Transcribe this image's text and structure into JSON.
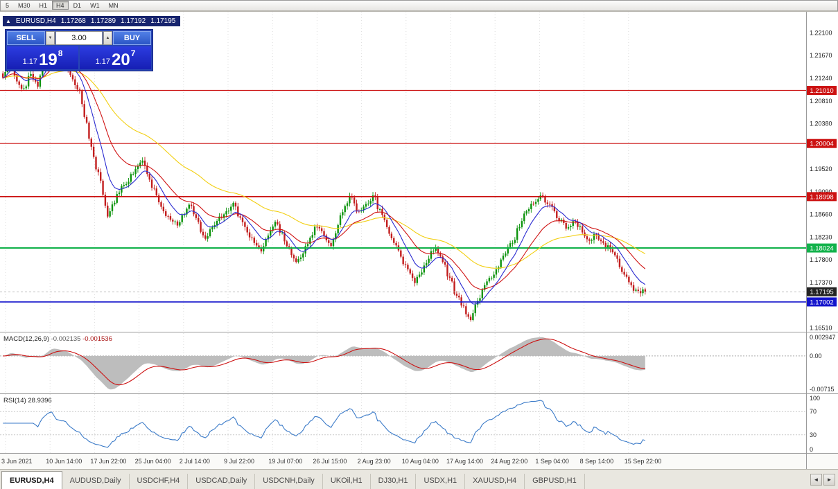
{
  "toolbar": {
    "periods": [
      {
        "label": "5",
        "active": false
      },
      {
        "label": "M30",
        "active": false
      },
      {
        "label": "H1",
        "active": false
      },
      {
        "label": "H4",
        "active": true
      },
      {
        "label": "D1",
        "active": false
      },
      {
        "label": "W1",
        "active": false
      },
      {
        "label": "MN",
        "active": false
      }
    ]
  },
  "chart": {
    "title": {
      "icon": "▲",
      "symbol": "EURUSD,H4",
      "open": "1.17268",
      "high": "1.17289",
      "low": "1.17192",
      "close": "1.17195"
    },
    "trade_panel": {
      "sell_label": "SELL",
      "buy_label": "BUY",
      "volume": "3.00",
      "down_glyph": "▼",
      "up_glyph": "▲",
      "sell_price": {
        "prefix": "1.17",
        "big": "19",
        "sup": "8"
      },
      "buy_price": {
        "prefix": "1.17",
        "big": "20",
        "sup": "7"
      }
    }
  },
  "chart_data": {
    "type": "candlestick",
    "symbol": "EURUSD",
    "timeframe": "H4",
    "ohlc_readout": {
      "open": 1.17268,
      "high": 1.17289,
      "low": 1.17192,
      "close": 1.17195
    },
    "price_axis": {
      "top": 1.225,
      "bottom": 1.1645,
      "labels": [
        "1.22100",
        "1.21670",
        "1.21240",
        "1.20810",
        "1.20380",
        "1.19950",
        "1.19520",
        "1.19090",
        "1.18660",
        "1.18230",
        "1.17800",
        "1.17370",
        "1.16940",
        "1.16510"
      ]
    },
    "time_labels": [
      "3 Jun 2021",
      "10 Jun 14:00",
      "17 Jun 22:00",
      "25 Jun 04:00",
      "2 Jul 14:00",
      "9 Jul 22:00",
      "19 Jul 07:00",
      "26 Jul 15:00",
      "2 Aug 23:00",
      "10 Aug 04:00",
      "17 Aug 14:00",
      "24 Aug 22:00",
      "1 Sep 04:00",
      "8 Sep 14:00",
      "15 Sep 22:00"
    ],
    "hlines": [
      {
        "price": 1.2101,
        "label": "1.21010",
        "color": "#cc1111",
        "width": 1.2
      },
      {
        "price": 1.20004,
        "label": "1.20004",
        "color": "#cc1111",
        "width": 1.2
      },
      {
        "price": 1.18998,
        "label": "1.18998",
        "color": "#cc1111",
        "width": 1.7
      },
      {
        "price": 1.18024,
        "label": "1.18024",
        "color": "#12b24b",
        "width": 2.2
      },
      {
        "price": 1.17002,
        "label": "1.17002",
        "color": "#1414cc",
        "width": 1.7
      }
    ],
    "current_price": {
      "value": 1.17195,
      "label": "1.17195",
      "badge_color": "#232323"
    },
    "candle_colors": {
      "up": "#0c930c",
      "down": "#c21d1d"
    },
    "close_anchors": [
      1.2125,
      1.216,
      1.2118,
      1.2105,
      1.2132,
      1.2108,
      1.2165,
      1.2196,
      1.2162,
      1.2155,
      1.2122,
      1.21,
      1.204,
      1.1975,
      1.193,
      1.1862,
      1.1888,
      1.192,
      1.1928,
      1.1952,
      1.1968,
      1.1932,
      1.1902,
      1.1872,
      1.1856,
      1.1845,
      1.1866,
      1.1882,
      1.1852,
      1.182,
      1.1842,
      1.1862,
      1.1872,
      1.1888,
      1.186,
      1.1832,
      1.1812,
      1.1796,
      1.1826,
      1.1852,
      1.1832,
      1.1802,
      1.1776,
      1.1792,
      1.1822,
      1.1842,
      1.1826,
      1.1806,
      1.1846,
      1.1882,
      1.1898,
      1.1872,
      1.1886,
      1.1902,
      1.1876,
      1.1842,
      1.1812,
      1.1786,
      1.1762,
      1.1736,
      1.1756,
      1.1782,
      1.1802,
      1.1776,
      1.1746,
      1.1712,
      1.1692,
      1.1666,
      1.1702,
      1.1732,
      1.1746,
      1.1766,
      1.1792,
      1.1812,
      1.1842,
      1.1872,
      1.1886,
      1.1902,
      1.1886,
      1.1872,
      1.1856,
      1.1842,
      1.1852,
      1.1832,
      1.1816,
      1.1826,
      1.1812,
      1.18,
      1.1782,
      1.1752,
      1.1732,
      1.1721,
      1.17195
    ],
    "moving_averages": [
      {
        "period": 60,
        "color": "#f2cf12"
      },
      {
        "period": 24,
        "color": "#d01414"
      },
      {
        "period": 10,
        "color": "#2a2ad0"
      }
    ],
    "macd": {
      "name": "MACD(12,26,9)",
      "fast": 12,
      "slow": 26,
      "signal": 9,
      "value1": "-0.002135",
      "value2": "-0.001536",
      "axis_labels": [
        "0.002947",
        "0.00",
        "-0.00715"
      ],
      "histogram_color": "#bdbdbd",
      "signal_color": "#cc1111"
    },
    "rsi": {
      "name": "RSI(14)",
      "period": 14,
      "value": "28.9396",
      "axis_labels": [
        "100",
        "70",
        "30",
        "0"
      ],
      "levels": [
        70,
        30
      ],
      "color": "#3a7ac8"
    }
  },
  "tabs": {
    "items": [
      {
        "label": "EURUSD,H4",
        "active": true
      },
      {
        "label": "AUDUSD,Daily",
        "active": false
      },
      {
        "label": "USDCHF,H4",
        "active": false
      },
      {
        "label": "USDCAD,Daily",
        "active": false
      },
      {
        "label": "USDCNH,Daily",
        "active": false
      },
      {
        "label": "UKOil,H1",
        "active": false
      },
      {
        "label": "DJ30,H1",
        "active": false
      },
      {
        "label": "USDX,H1",
        "active": false
      },
      {
        "label": "XAUUSD,H4",
        "active": false
      },
      {
        "label": "GBPUSD,H1",
        "active": false
      }
    ],
    "scroll_left": "◄",
    "scroll_right": "►"
  }
}
